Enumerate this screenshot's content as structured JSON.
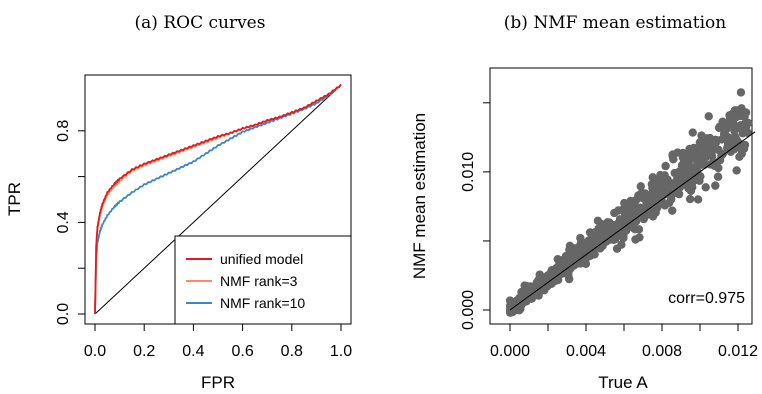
{
  "chart_data": [
    {
      "type": "line",
      "panel_caption": "(a) ROC curves",
      "xlabel": "FPR",
      "ylabel": "TPR",
      "xlim": [
        0,
        1
      ],
      "ylim": [
        0,
        1
      ],
      "x_ticks": [
        "0.0",
        "0.2",
        "0.4",
        "0.6",
        "0.8",
        "1.0"
      ],
      "y_ticks": [
        "0.0",
        "0.4",
        "0.8"
      ],
      "diagonal_reference": true,
      "legend_position": "bottom-right",
      "series": [
        {
          "name": "unified model",
          "color": "#e41a1c",
          "x": [
            0,
            0.005,
            0.01,
            0.02,
            0.03,
            0.05,
            0.08,
            0.1,
            0.15,
            0.2,
            0.25,
            0.3,
            0.35,
            0.4,
            0.45,
            0.5,
            0.55,
            0.6,
            0.65,
            0.7,
            0.75,
            0.8,
            0.85,
            0.9,
            0.95,
            1.0
          ],
          "y": [
            0,
            0.3,
            0.38,
            0.44,
            0.48,
            0.53,
            0.57,
            0.59,
            0.63,
            0.655,
            0.675,
            0.695,
            0.715,
            0.735,
            0.755,
            0.775,
            0.79,
            0.81,
            0.825,
            0.845,
            0.86,
            0.88,
            0.9,
            0.93,
            0.96,
            1.0
          ]
        },
        {
          "name": "NMF rank=3",
          "color": "#fc8d62",
          "x": [
            0,
            0.005,
            0.01,
            0.02,
            0.03,
            0.05,
            0.08,
            0.1,
            0.15,
            0.2,
            0.25,
            0.3,
            0.35,
            0.4,
            0.45,
            0.5,
            0.55,
            0.6,
            0.65,
            0.7,
            0.75,
            0.8,
            0.85,
            0.9,
            0.95,
            1.0
          ],
          "y": [
            0,
            0.29,
            0.37,
            0.43,
            0.47,
            0.52,
            0.56,
            0.58,
            0.625,
            0.65,
            0.67,
            0.69,
            0.71,
            0.73,
            0.75,
            0.77,
            0.79,
            0.81,
            0.825,
            0.845,
            0.86,
            0.88,
            0.9,
            0.93,
            0.96,
            1.0
          ]
        },
        {
          "name": "NMF rank=10",
          "color": "#3a87c9",
          "x": [
            0,
            0.005,
            0.01,
            0.02,
            0.03,
            0.05,
            0.08,
            0.1,
            0.15,
            0.2,
            0.25,
            0.3,
            0.35,
            0.4,
            0.45,
            0.5,
            0.55,
            0.6,
            0.65,
            0.7,
            0.75,
            0.8,
            0.85,
            0.9,
            0.95,
            1.0
          ],
          "y": [
            0,
            0.25,
            0.31,
            0.36,
            0.39,
            0.43,
            0.47,
            0.49,
            0.53,
            0.565,
            0.59,
            0.615,
            0.64,
            0.665,
            0.7,
            0.735,
            0.765,
            0.795,
            0.815,
            0.835,
            0.855,
            0.875,
            0.895,
            0.92,
            0.955,
            1.0
          ]
        }
      ]
    },
    {
      "type": "scatter",
      "panel_caption": "(b) NMF mean estimation",
      "xlabel": "True A",
      "ylabel": "NMF mean estimation",
      "xlim": [
        0,
        0.013
      ],
      "ylim": [
        -0.0005,
        0.0165
      ],
      "x_ticks": [
        "0.000",
        "0.004",
        "0.008",
        "0.012"
      ],
      "y_ticks": [
        "0.000",
        "0.010"
      ],
      "point_color": "#666666",
      "identity_line": true,
      "annotation": "corr=0.975",
      "n_points": 700,
      "trend": "y ≈ 1.08·x, spread growing with x (sd ≈ 0.00025 + 0.07·x)",
      "x": [
        0.0005,
        0.001,
        0.0015,
        0.002,
        0.0025,
        0.003,
        0.0035,
        0.004,
        0.0045,
        0.005,
        0.0055,
        0.006,
        0.0065,
        0.007,
        0.0075,
        0.008,
        0.0085,
        0.009,
        0.0095,
        0.01,
        0.0105,
        0.011,
        0.0115,
        0.012,
        0.0125
      ],
      "y": [
        0.0005,
        0.001,
        0.0016,
        0.0021,
        0.0027,
        0.0032,
        0.0038,
        0.0043,
        0.0049,
        0.0054,
        0.006,
        0.0065,
        0.007,
        0.0076,
        0.0081,
        0.0087,
        0.0092,
        0.0097,
        0.0103,
        0.0108,
        0.0114,
        0.0119,
        0.0124,
        0.013,
        0.0135
      ]
    }
  ]
}
